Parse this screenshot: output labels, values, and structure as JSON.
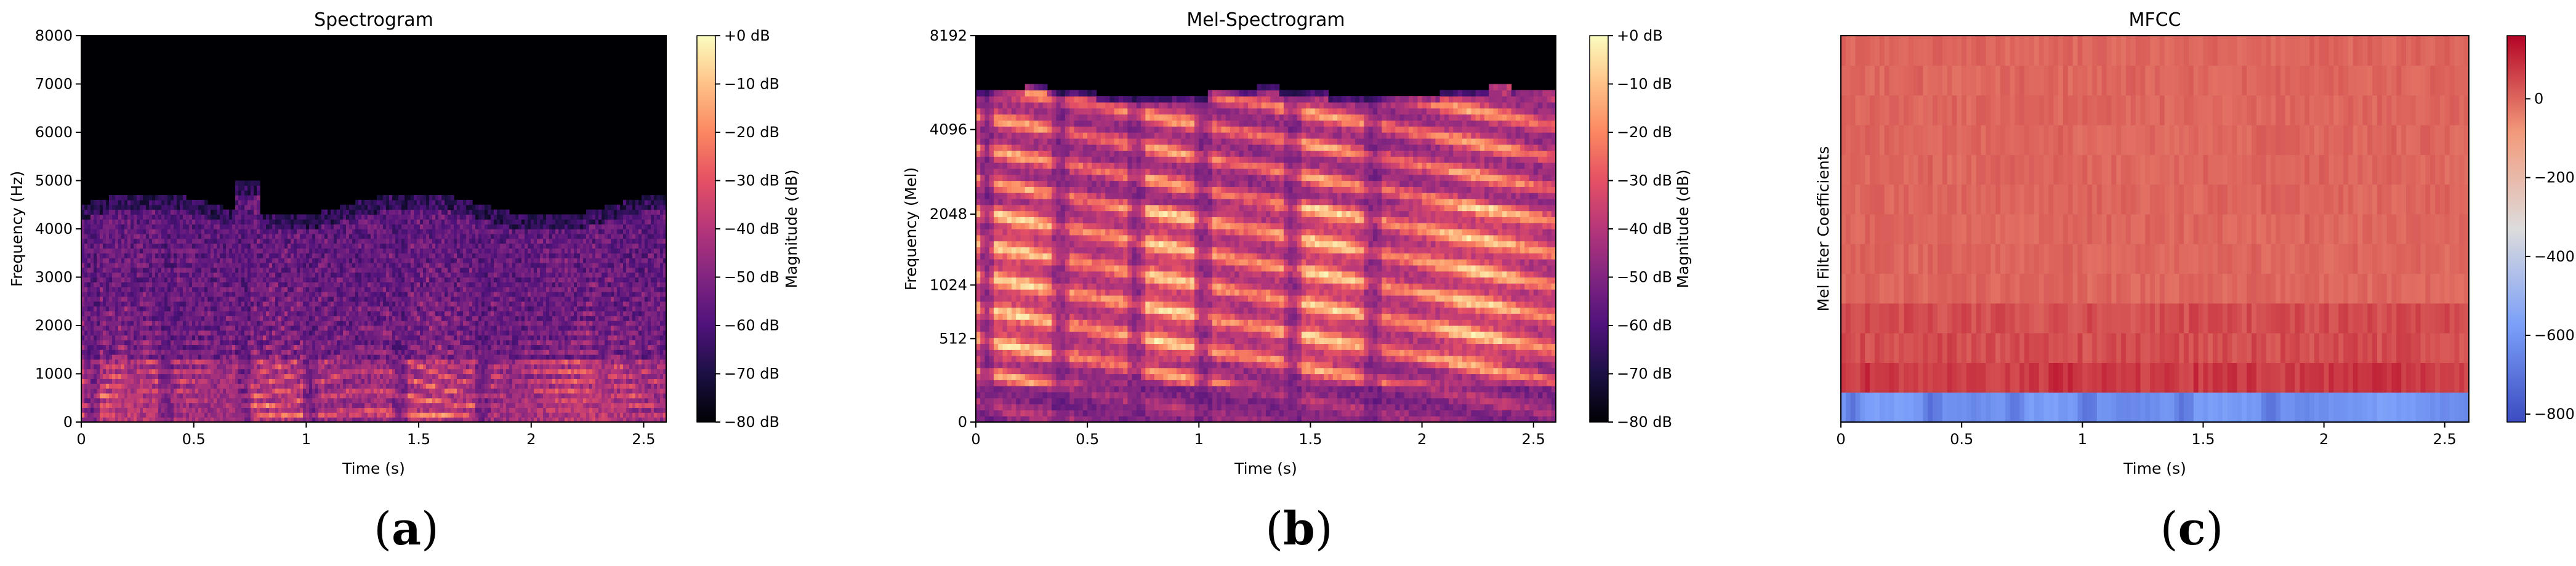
{
  "chart_data": [
    {
      "type": "heatmap",
      "title": "Spectrogram",
      "caption_letter": "a",
      "xlabel": "Time (s)",
      "ylabel": "Frequency (Hz)",
      "xlim": [
        0,
        2.6
      ],
      "ylim": [
        0,
        8000
      ],
      "xticks": [
        0,
        0.5,
        1,
        1.5,
        2,
        2.5
      ],
      "xtick_labels": [
        "0",
        "0.5",
        "1",
        "1.5",
        "2",
        "2.5"
      ],
      "yticks": [
        0,
        1000,
        2000,
        3000,
        4000,
        5000,
        6000,
        7000,
        8000
      ],
      "ytick_labels": [
        "0",
        "1000",
        "2000",
        "3000",
        "4000",
        "5000",
        "6000",
        "7000",
        "8000"
      ],
      "colormap": "magma",
      "colorbar": {
        "label": "Magnitude (dB)",
        "range": [
          -80,
          0
        ],
        "ticks": [
          0,
          -10,
          -20,
          -30,
          -40,
          -50,
          -60,
          -70,
          -80
        ],
        "tick_labels": [
          "+0 dB",
          "−10 dB",
          "−20 dB",
          "−30 dB",
          "−40 dB",
          "−50 dB",
          "−60 dB",
          "−70 dB",
          "−80 dB"
        ]
      }
    },
    {
      "type": "heatmap",
      "title": "Mel-Spectrogram",
      "caption_letter": "b",
      "xlabel": "Time (s)",
      "ylabel": "Frequency (Mel)",
      "xlim": [
        0,
        2.6
      ],
      "yscale": "mel",
      "ylim": [
        0,
        8192
      ],
      "xticks": [
        0,
        0.5,
        1,
        1.5,
        2,
        2.5
      ],
      "xtick_labels": [
        "0",
        "0.5",
        "1",
        "1.5",
        "2",
        "2.5"
      ],
      "yticks": [
        0,
        512,
        1024,
        2048,
        4096,
        8192
      ],
      "ytick_labels": [
        "0",
        "512",
        "1024",
        "2048",
        "4096",
        "8192"
      ],
      "colormap": "magma",
      "colorbar": {
        "label": "Magnitude (dB)",
        "range": [
          -80,
          0
        ],
        "ticks": [
          0,
          -10,
          -20,
          -30,
          -40,
          -50,
          -60,
          -70,
          -80
        ],
        "tick_labels": [
          "+0 dB",
          "−10 dB",
          "−20 dB",
          "−30 dB",
          "−40 dB",
          "−50 dB",
          "−60 dB",
          "−70 dB",
          "−80 dB"
        ]
      }
    },
    {
      "type": "heatmap",
      "title": "MFCC",
      "caption_letter": "c",
      "xlabel": "Time (s)",
      "ylabel": "Mel Filter Coefficients",
      "xlim": [
        0,
        2.6
      ],
      "xticks": [
        0,
        0.5,
        1,
        1.5,
        2,
        2.5
      ],
      "xtick_labels": [
        "0",
        "0.5",
        "1",
        "1.5",
        "2",
        "2.5"
      ],
      "coefficient_count": 13,
      "colormap": "coolwarm",
      "colorbar": {
        "label": "",
        "range": [
          -820,
          160
        ],
        "ticks": [
          0,
          -200,
          -400,
          -600,
          -800
        ],
        "tick_labels": [
          "0",
          "−200",
          "−400",
          "−600",
          "−800"
        ]
      }
    }
  ]
}
